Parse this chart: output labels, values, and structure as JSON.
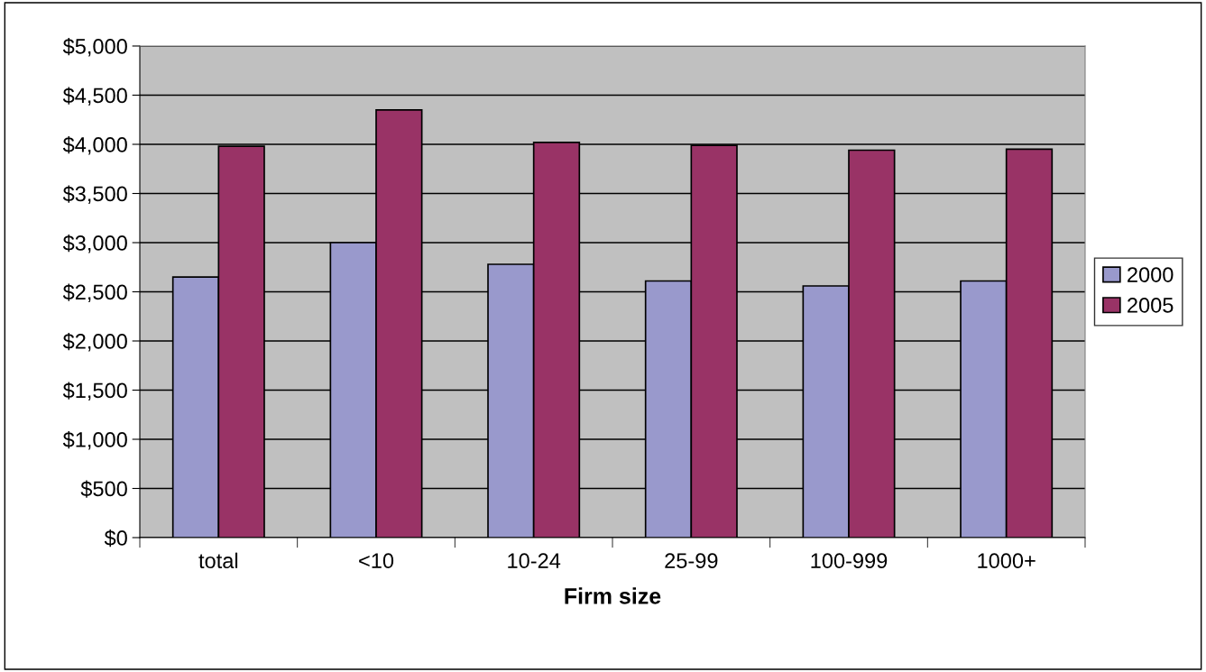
{
  "chart_data": {
    "type": "bar",
    "xlabel": "Firm size",
    "categories": [
      "total",
      "<10",
      "10-24",
      "25-99",
      "100-999",
      "1000+"
    ],
    "series": [
      {
        "name": "2000",
        "color": "#9999cc",
        "values": [
          2650,
          3000,
          2780,
          2610,
          2560,
          2610
        ]
      },
      {
        "name": "2005",
        "color": "#993366",
        "values": [
          3980,
          4350,
          4020,
          3990,
          3940,
          3950
        ]
      }
    ],
    "ylim": [
      0,
      5000
    ],
    "yticks": [
      {
        "value": 0,
        "label": "$0"
      },
      {
        "value": 500,
        "label": "$500"
      },
      {
        "value": 1000,
        "label": "$1,000"
      },
      {
        "value": 1500,
        "label": "$1,500"
      },
      {
        "value": 2000,
        "label": "$2,000"
      },
      {
        "value": 2500,
        "label": "$2,500"
      },
      {
        "value": 3000,
        "label": "$3,000"
      },
      {
        "value": 3500,
        "label": "$3,500"
      },
      {
        "value": 4000,
        "label": "$4,000"
      },
      {
        "value": 4500,
        "label": "$4,500"
      },
      {
        "value": 5000,
        "label": "$5,000"
      }
    ],
    "grid": "y",
    "legend": "right"
  }
}
